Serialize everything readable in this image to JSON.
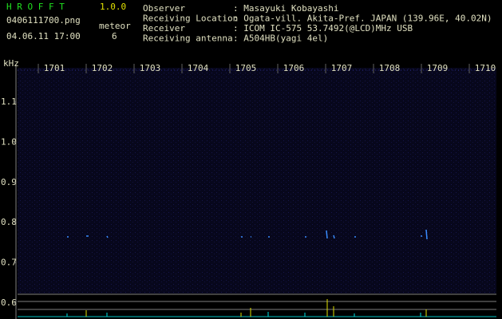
{
  "header": {
    "app": "H R O F F T",
    "version": "1.0.0",
    "file": "0406111700.png",
    "datetime": "04.06.11 17:00",
    "meteor_label": "meteor",
    "meteor_count": "6"
  },
  "info": [
    {
      "label": "Observer",
      "value": ": Masayuki Kobayashi"
    },
    {
      "label": "Receiving Location",
      "value": ": Ogata-vill. Akita-Pref. JAPAN (139.96E, 40.02N)"
    },
    {
      "label": "Receiver",
      "value": ": ICOM IC-575 53.7492(@LCD)MHz USB"
    },
    {
      "label": "Receiving antenna",
      "value": ": A504HB(yagi 4el)"
    }
  ],
  "axes": {
    "x_labels": [
      "1701",
      "1702",
      "1703",
      "1704",
      "1705",
      "1706",
      "1707",
      "1708",
      "1709",
      "1710"
    ],
    "y_unit": "kHz",
    "y_labels": [
      "1.1",
      "1.0",
      "0.9",
      "0.8",
      "0.7",
      "0.6"
    ]
  }
}
